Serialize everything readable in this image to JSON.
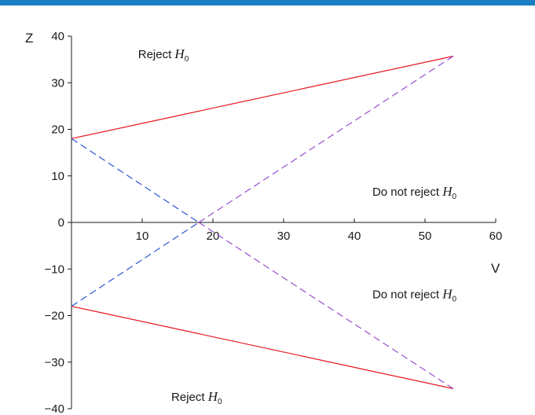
{
  "colors": {
    "top_bar": "#1b7fc3",
    "axis": "#1a1a1a",
    "boundary_line": "#e8141e",
    "dashed_blue": "#2a55d8",
    "dashed_purple": "#9a4fd0"
  },
  "chart_data": {
    "type": "line",
    "xlabel": "V",
    "ylabel": "Z",
    "xlim": [
      0,
      60
    ],
    "ylim": [
      -40,
      40
    ],
    "x_ticks": [
      "10",
      "20",
      "30",
      "40",
      "50",
      "60"
    ],
    "y_ticks": [
      "40",
      "30",
      "20",
      "10",
      "0",
      "−10",
      "−20",
      "−30",
      "−40"
    ],
    "series": [
      {
        "style": "solid",
        "color": "#e8141e",
        "points": [
          [
            0,
            18
          ],
          [
            54,
            35.7
          ]
        ]
      },
      {
        "style": "solid",
        "color": "#e8141e",
        "points": [
          [
            0,
            -18
          ],
          [
            54,
            -35.7
          ]
        ]
      },
      {
        "style": "dashed",
        "color": "#2a55d8",
        "points": [
          [
            0,
            18
          ],
          [
            18,
            0
          ]
        ]
      },
      {
        "style": "dashed",
        "color": "#2a55d8",
        "points": [
          [
            0,
            -18
          ],
          [
            18,
            0
          ]
        ]
      },
      {
        "style": "dashed",
        "color": "#9a4fd0",
        "points": [
          [
            18,
            0
          ],
          [
            54,
            35.7
          ]
        ]
      },
      {
        "style": "dashed",
        "color": "#9a4fd0",
        "points": [
          [
            18,
            0
          ],
          [
            54,
            -35.7
          ]
        ]
      }
    ],
    "annotations": [
      {
        "key": "reject_top",
        "prefix": "Reject ",
        "symbol": "H",
        "subscript": "0",
        "x": 13,
        "y": 35.3
      },
      {
        "key": "not_reject_upper",
        "prefix": "Do not reject ",
        "symbol": "H",
        "subscript": "0",
        "x": 48.5,
        "y": 5.7
      },
      {
        "key": "not_reject_lower",
        "prefix": "Do not reject ",
        "symbol": "H",
        "subscript": "0",
        "x": 48.5,
        "y": -16.3
      },
      {
        "key": "reject_bottom",
        "prefix": "Reject ",
        "symbol": "H",
        "subscript": "0",
        "x": 17.7,
        "y": -38.3
      }
    ]
  }
}
